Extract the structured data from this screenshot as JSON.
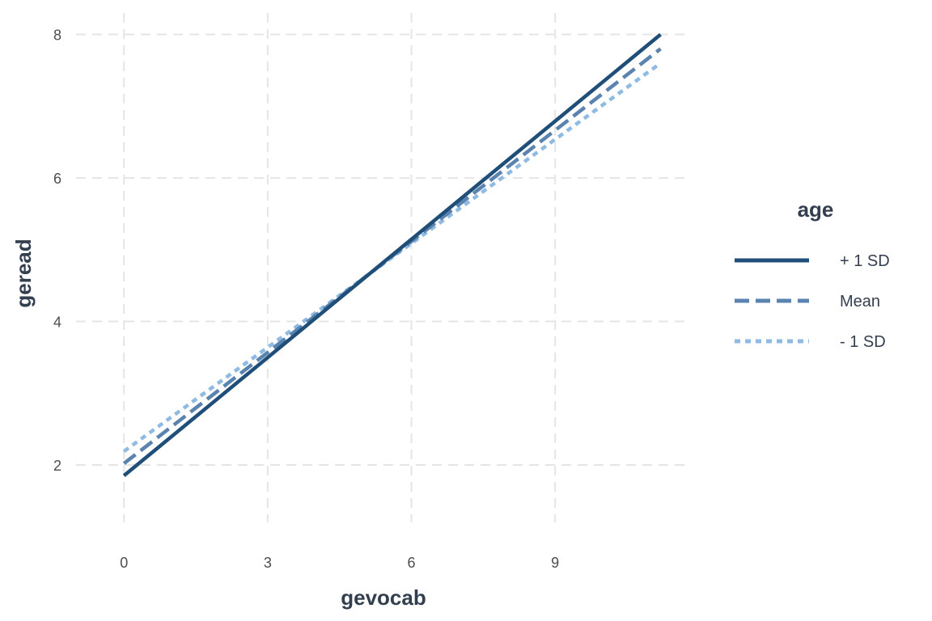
{
  "chart_data": {
    "type": "line",
    "title": "",
    "xlabel": "gevocab",
    "ylabel": "geread",
    "xlim": [
      -1,
      11.8
    ],
    "ylim": [
      1.2,
      8.3
    ],
    "x_ticks": [
      0,
      3,
      6,
      9
    ],
    "y_ticks": [
      2,
      4,
      6,
      8
    ],
    "grid": true,
    "legend": {
      "title": "age",
      "placement": "right"
    },
    "series": [
      {
        "name": "+ 1 SD",
        "x": [
          0,
          11.2
        ],
        "y": [
          1.85,
          8.0
        ],
        "color": "#1f4e79",
        "dash": "solid"
      },
      {
        "name": "Mean",
        "x": [
          0,
          11.2
        ],
        "y": [
          2.02,
          7.8
        ],
        "color": "#5a83b0",
        "dash": "dashed"
      },
      {
        "name": "- 1 SD",
        "x": [
          0,
          11.2
        ],
        "y": [
          2.19,
          7.6
        ],
        "color": "#8fbbe3",
        "dash": "dotted"
      }
    ]
  }
}
